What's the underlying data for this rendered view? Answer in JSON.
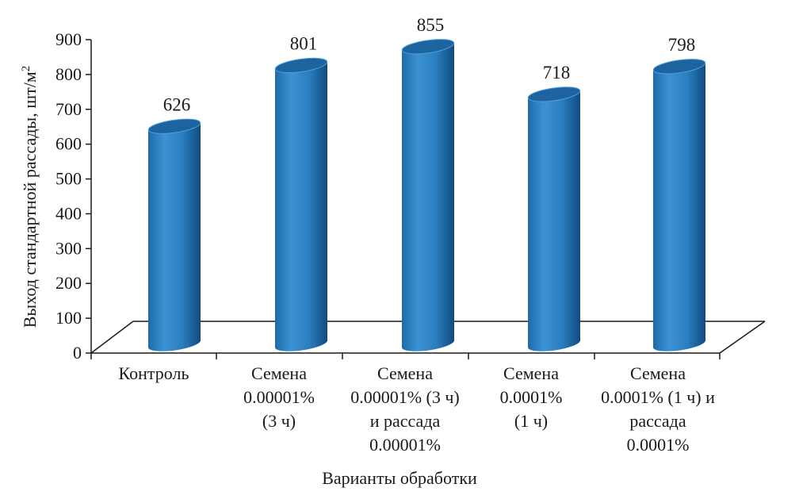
{
  "chart_data": {
    "type": "bar",
    "categories": [
      "Контроль",
      "Семена\n0.00001%\n(3 ч)",
      "Семена\n0.00001% (3 ч)\nи рассада\n0.00001%",
      "Семена\n0.0001%\n(1 ч)",
      "Семена\n0.0001% (1 ч) и\nрассада\n0.0001%"
    ],
    "values": [
      626,
      801,
      855,
      718,
      798
    ],
    "data_labels": [
      "626",
      "801",
      "855",
      "718",
      "798"
    ],
    "title": "",
    "xlabel": "Варианты обработки",
    "ylabel": "Выход стандартной рассады, шт/м",
    "ylabel_superscript": "2",
    "ylim": [
      0,
      900
    ],
    "yticks": [
      "0",
      "100",
      "200",
      "300",
      "400",
      "500",
      "600",
      "700",
      "800",
      "900"
    ],
    "colors": {
      "bar": "#2a7fc0",
      "bar_dark": "#124f86",
      "bar_light": "#5aa6df",
      "axis": "#1a1a1a"
    }
  }
}
